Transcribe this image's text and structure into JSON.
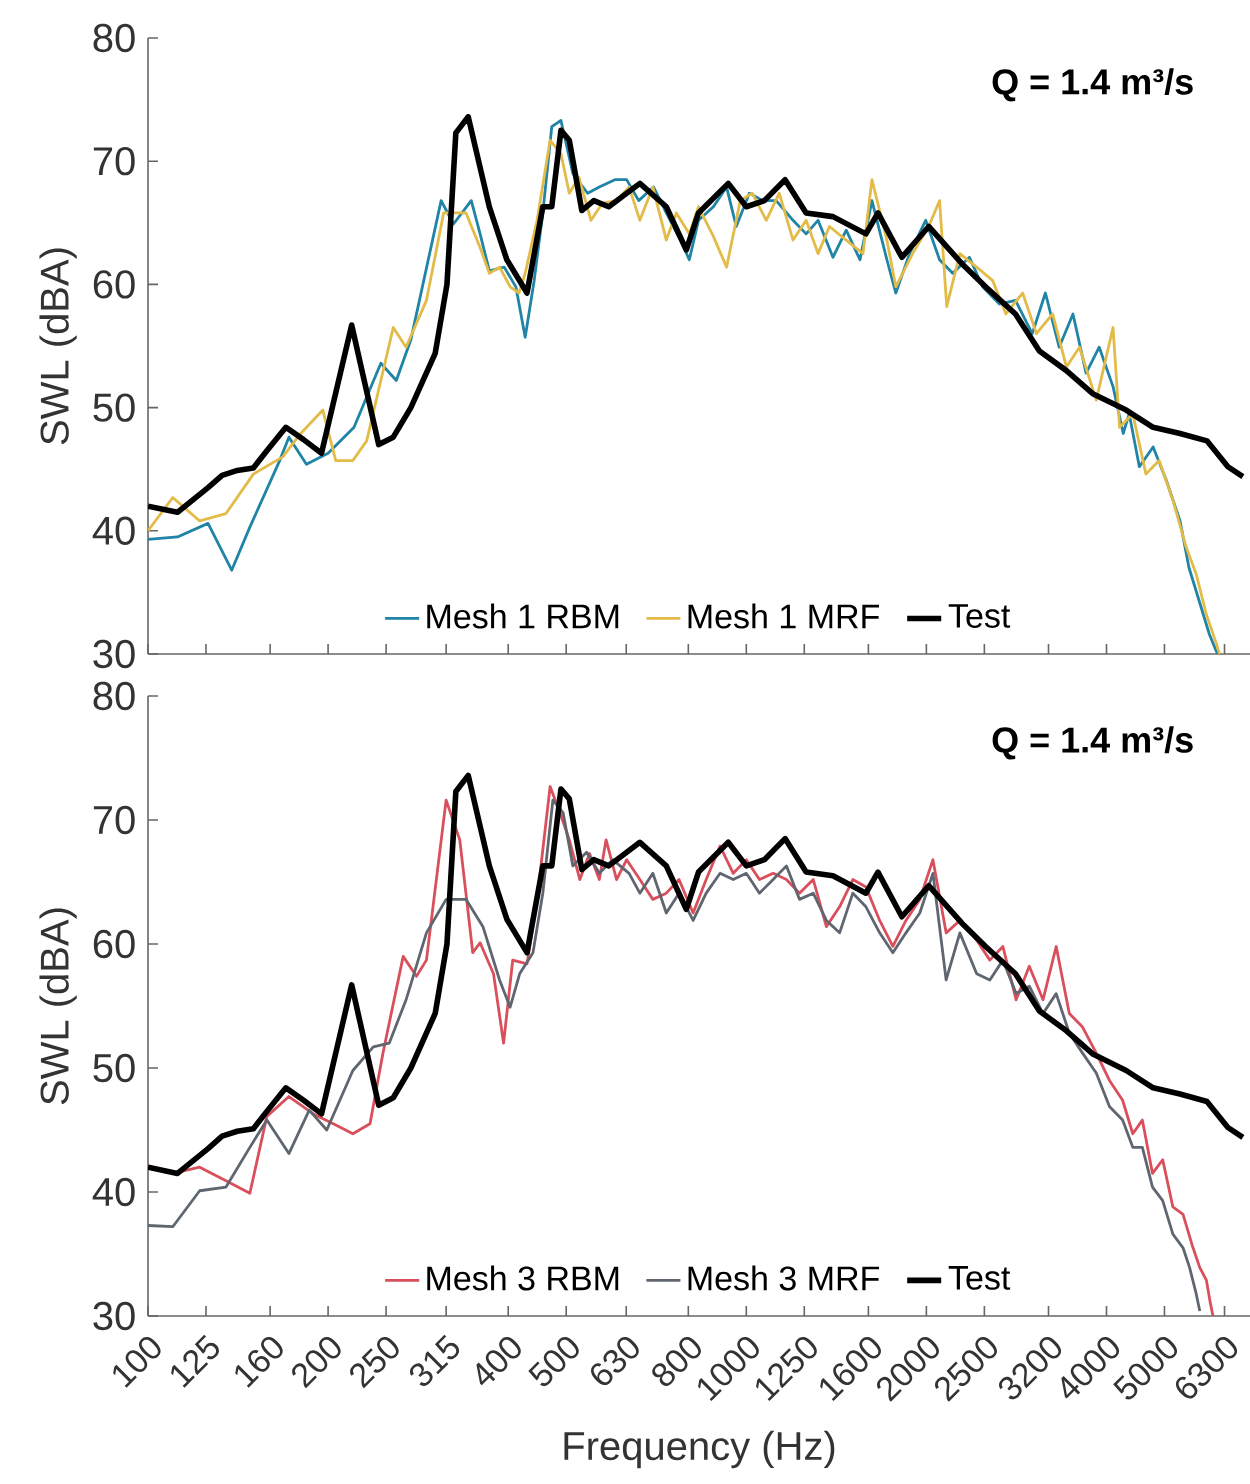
{
  "chart_data": [
    {
      "type": "line",
      "ylabel": "SWL (dBA)",
      "annotations": [
        "Q = 1.4 m³/s"
      ],
      "log": "x",
      "legend": "bottom",
      "tick_labels": "y",
      "xlim": [
        100,
        6950
      ],
      "xticks": [
        100,
        125,
        160,
        200,
        250,
        315,
        400,
        500,
        630,
        800,
        1000,
        1250,
        1600,
        2000,
        2500,
        3200,
        4000,
        5000,
        6300
      ],
      "ylim": [
        30,
        80
      ],
      "yticks": [
        30,
        40,
        50,
        60,
        70,
        80
      ],
      "series": [
        {
          "name": "Mesh 1 RBM",
          "color": "#1f84a6",
          "x": [
            100,
            112,
            126,
            138,
            148,
            166,
            172,
            184,
            200,
            221,
            245,
            260,
            275,
            309,
            324,
            347,
            359,
            372,
            394,
            412,
            427,
            442,
            457,
            473,
            490,
            513,
            543,
            568,
            603,
            631,
            661,
            700,
            735,
            776,
            803,
            832,
            881,
            927,
            962,
            1012,
            1066,
            1122,
            1197,
            1259,
            1318,
            1396,
            1469,
            1549,
            1622,
            1718,
            1778,
            1875,
            1995,
            2104,
            2213,
            2360,
            2483,
            2649,
            2818,
            3006,
            3162,
            3334,
            3516,
            3698,
            3890,
            4102,
            4266,
            4365,
            4539,
            4786,
            5035,
            5309,
            5495,
            5715,
            5943,
            6095,
            6138
          ],
          "values": [
            39.3,
            39.5,
            40.6,
            36.8,
            40.3,
            45.7,
            47.6,
            45.4,
            46.3,
            48.4,
            53.6,
            52.2,
            55.5,
            66.8,
            64.9,
            66.8,
            64.1,
            61.1,
            61.4,
            59.8,
            55.7,
            60.3,
            65.8,
            72.8,
            73.3,
            69.0,
            67.4,
            67.9,
            68.5,
            68.5,
            66.8,
            67.9,
            65.8,
            63.6,
            62.0,
            65.2,
            66.3,
            67.9,
            64.7,
            67.4,
            66.8,
            66.8,
            65.2,
            64.1,
            65.2,
            62.2,
            64.4,
            62.0,
            66.8,
            62.0,
            59.3,
            62.5,
            65.2,
            62.0,
            60.9,
            62.2,
            59.8,
            58.4,
            58.7,
            56.0,
            59.3,
            54.9,
            57.6,
            52.8,
            54.9,
            51.7,
            47.9,
            49.5,
            45.2,
            46.8,
            44.1,
            40.8,
            37.0,
            34.3,
            31.6,
            30.3,
            30.0
          ]
        },
        {
          "name": "Mesh 1 MRF",
          "color": "#e2bb48",
          "x": [
            100,
            110,
            122,
            135,
            150,
            168,
            180,
            196,
            206,
            220,
            232,
            257,
            270,
            292,
            312,
            340,
            359,
            372,
            387,
            403,
            417,
            427,
            447,
            470,
            490,
            506,
            525,
            550,
            575,
            607,
            637,
            664,
            698,
            735,
            764,
            803,
            832,
            881,
            927,
            977,
            1023,
            1080,
            1135,
            1197,
            1259,
            1318,
            1377,
            1469,
            1567,
            1622,
            1718,
            1778,
            1897,
            2018,
            2104,
            2163,
            2275,
            2427,
            2582,
            2716,
            2897,
            3055,
            3251,
            3428,
            3606,
            3846,
            4102,
            4207,
            4426,
            4656,
            4898,
            5164,
            5433,
            5649,
            5875,
            6109,
            6180
          ],
          "values": [
            40.0,
            42.7,
            40.8,
            41.4,
            44.6,
            46.0,
            47.9,
            49.8,
            45.7,
            45.7,
            47.3,
            56.5,
            54.9,
            58.7,
            65.8,
            65.8,
            63.0,
            60.9,
            61.4,
            59.8,
            59.3,
            60.9,
            65.2,
            71.7,
            70.6,
            67.4,
            68.7,
            65.2,
            66.6,
            66.8,
            67.9,
            65.2,
            67.9,
            63.6,
            65.8,
            64.1,
            66.3,
            63.9,
            61.4,
            66.8,
            67.4,
            65.2,
            67.4,
            63.6,
            65.2,
            62.5,
            64.7,
            63.6,
            62.5,
            68.5,
            63.6,
            59.8,
            62.5,
            64.7,
            66.8,
            58.2,
            62.5,
            61.4,
            60.3,
            57.6,
            59.3,
            56.0,
            57.6,
            53.3,
            54.9,
            50.6,
            56.5,
            48.4,
            49.5,
            44.6,
            45.7,
            42.5,
            38.7,
            36.5,
            33.2,
            30.8,
            30.0
          ]
        },
        {
          "name": "Test",
          "color": "#000000",
          "x": [
            100,
            112,
            126,
            133,
            141,
            150,
            158,
            170,
            182,
            195,
            219,
            243,
            257,
            275,
            302,
            316,
            327,
            343,
            372,
            398,
            430,
            457,
            473,
            490,
            506,
            531,
            556,
            589,
            664,
            735,
            794,
            832,
            933,
            1000,
            1072,
            1161,
            1259,
            1396,
            1585,
            1660,
            1820,
            2018,
            2291,
            2512,
            2818,
            3090,
            3428,
            3802,
            4315,
            4786,
            5309,
            5888,
            6383,
            6761
          ],
          "values": [
            42.0,
            41.5,
            43.5,
            44.5,
            44.9,
            45.1,
            46.5,
            48.4,
            47.4,
            46.3,
            56.7,
            47.0,
            47.6,
            50.0,
            54.4,
            60.0,
            72.3,
            73.6,
            66.3,
            62.0,
            59.3,
            66.3,
            66.3,
            72.5,
            71.7,
            66.0,
            66.8,
            66.3,
            68.2,
            66.3,
            62.8,
            65.8,
            68.2,
            66.3,
            66.8,
            68.5,
            65.8,
            65.5,
            64.1,
            65.8,
            62.2,
            64.7,
            61.7,
            59.8,
            57.6,
            54.6,
            53.0,
            51.1,
            49.8,
            48.4,
            47.9,
            47.3,
            45.2,
            44.4
          ]
        }
      ]
    },
    {
      "type": "line",
      "xlabel": "Frequency (Hz)",
      "ylabel": "SWL (dBA)",
      "annotations": [
        "Q = 1.4 m³/s"
      ],
      "log": "x",
      "legend": "bottom",
      "xlim": [
        100,
        6950
      ],
      "xticks": [
        100,
        125,
        160,
        200,
        250,
        315,
        400,
        500,
        630,
        800,
        1000,
        1250,
        1600,
        2000,
        2500,
        3200,
        4000,
        5000,
        6300
      ],
      "ylim": [
        30,
        80
      ],
      "yticks": [
        30,
        40,
        50,
        60,
        70,
        80
      ],
      "series": [
        {
          "name": "Mesh 3 RBM",
          "color": "#d9505c",
          "x": [
            100,
            110,
            122,
            135,
            148,
            158,
            172,
            189,
            204,
            220,
            235,
            247,
            267,
            281,
            292,
            315,
            332,
            349,
            359,
            378,
            393,
            407,
            430,
            447,
            470,
            488,
            506,
            527,
            547,
            568,
            583,
            607,
            631,
            664,
            698,
            735,
            772,
            815,
            857,
            904,
            951,
            1000,
            1052,
            1109,
            1167,
            1227,
            1294,
            1361,
            1432,
            1507,
            1585,
            1671,
            1758,
            1849,
            1950,
            2051,
            2158,
            2275,
            2427,
            2553,
            2685,
            2825,
            2972,
            3133,
            3296,
            3467,
            3648,
            3846,
            4046,
            4256,
            4426,
            4592,
            4775,
            4966,
            5164,
            5370,
            5572,
            5728,
            5875,
            5957,
            6026
          ],
          "values": [
            42.1,
            41.5,
            42.0,
            40.9,
            39.9,
            46.1,
            47.7,
            46.3,
            45.5,
            44.7,
            45.5,
            51.2,
            59.0,
            57.4,
            58.7,
            71.6,
            68.4,
            59.3,
            60.1,
            57.6,
            52.0,
            58.7,
            58.4,
            63.6,
            72.7,
            70.6,
            68.4,
            65.2,
            67.3,
            65.2,
            68.4,
            65.2,
            66.8,
            65.2,
            63.6,
            64.1,
            65.2,
            62.5,
            65.2,
            67.9,
            65.7,
            66.8,
            65.2,
            65.7,
            65.2,
            64.1,
            65.2,
            61.4,
            63.0,
            65.2,
            64.6,
            61.9,
            59.8,
            61.9,
            63.6,
            66.8,
            60.9,
            61.9,
            60.3,
            58.7,
            59.8,
            55.5,
            58.2,
            55.5,
            59.8,
            54.4,
            53.3,
            51.2,
            49.0,
            47.4,
            44.7,
            45.8,
            41.5,
            42.6,
            38.8,
            38.2,
            35.6,
            33.9,
            32.9,
            31.2,
            30.0
          ]
        },
        {
          "name": "Mesh 3 MRF",
          "color": "#5f6670",
          "x": [
            100,
            110,
            122,
            135,
            148,
            158,
            172,
            186,
            199,
            220,
            238,
            253,
            270,
            292,
            315,
            340,
            363,
            387,
            403,
            418,
            440,
            457,
            475,
            494,
            513,
            541,
            568,
            598,
            637,
            664,
            698,
            735,
            772,
            815,
            857,
            904,
            951,
            1000,
            1052,
            1109,
            1167,
            1227,
            1294,
            1361,
            1432,
            1507,
            1585,
            1671,
            1758,
            1849,
            1950,
            2051,
            2158,
            2275,
            2427,
            2553,
            2685,
            2825,
            2972,
            3133,
            3296,
            3467,
            3648,
            3846,
            4046,
            4256,
            4426,
            4592,
            4775,
            4966,
            5164,
            5370,
            5508,
            5649,
            5728
          ],
          "values": [
            37.3,
            37.2,
            40.1,
            40.4,
            43.6,
            45.8,
            43.1,
            46.6,
            45.0,
            49.8,
            51.7,
            52.0,
            55.5,
            60.9,
            63.6,
            63.6,
            61.4,
            57.1,
            54.9,
            57.6,
            59.3,
            64.1,
            71.6,
            70.6,
            66.3,
            67.4,
            65.7,
            66.8,
            65.7,
            64.1,
            65.7,
            62.5,
            64.1,
            61.9,
            64.1,
            65.7,
            65.2,
            65.7,
            64.1,
            65.2,
            66.3,
            63.6,
            64.1,
            61.9,
            60.9,
            64.1,
            63.0,
            60.9,
            59.3,
            60.9,
            62.5,
            65.7,
            57.1,
            60.9,
            57.6,
            57.1,
            58.7,
            56.0,
            56.6,
            54.4,
            56.0,
            52.8,
            51.2,
            49.6,
            46.9,
            45.8,
            43.6,
            43.6,
            40.4,
            39.3,
            36.6,
            35.5,
            33.9,
            31.8,
            30.4
          ]
        },
        {
          "name": "Test",
          "color": "#000000",
          "x": [
            100,
            112,
            126,
            133,
            141,
            150,
            158,
            170,
            182,
            195,
            219,
            243,
            257,
            275,
            302,
            316,
            327,
            343,
            372,
            398,
            430,
            457,
            473,
            490,
            506,
            531,
            556,
            589,
            664,
            735,
            794,
            832,
            933,
            1000,
            1072,
            1161,
            1259,
            1396,
            1585,
            1660,
            1820,
            2018,
            2291,
            2512,
            2818,
            3090,
            3428,
            3802,
            4315,
            4786,
            5309,
            5888,
            6383,
            6761
          ],
          "values": [
            42.0,
            41.5,
            43.5,
            44.5,
            44.9,
            45.1,
            46.5,
            48.4,
            47.4,
            46.3,
            56.7,
            47.0,
            47.6,
            50.0,
            54.4,
            60.0,
            72.3,
            73.6,
            66.3,
            62.0,
            59.3,
            66.3,
            66.3,
            72.5,
            71.7,
            66.0,
            66.8,
            66.3,
            68.2,
            66.3,
            62.8,
            65.8,
            68.2,
            66.3,
            66.8,
            68.5,
            65.8,
            65.5,
            64.1,
            65.8,
            62.2,
            64.7,
            61.7,
            59.8,
            57.6,
            54.6,
            53.0,
            51.1,
            49.8,
            48.4,
            47.9,
            47.3,
            45.2,
            44.4
          ]
        }
      ]
    }
  ]
}
